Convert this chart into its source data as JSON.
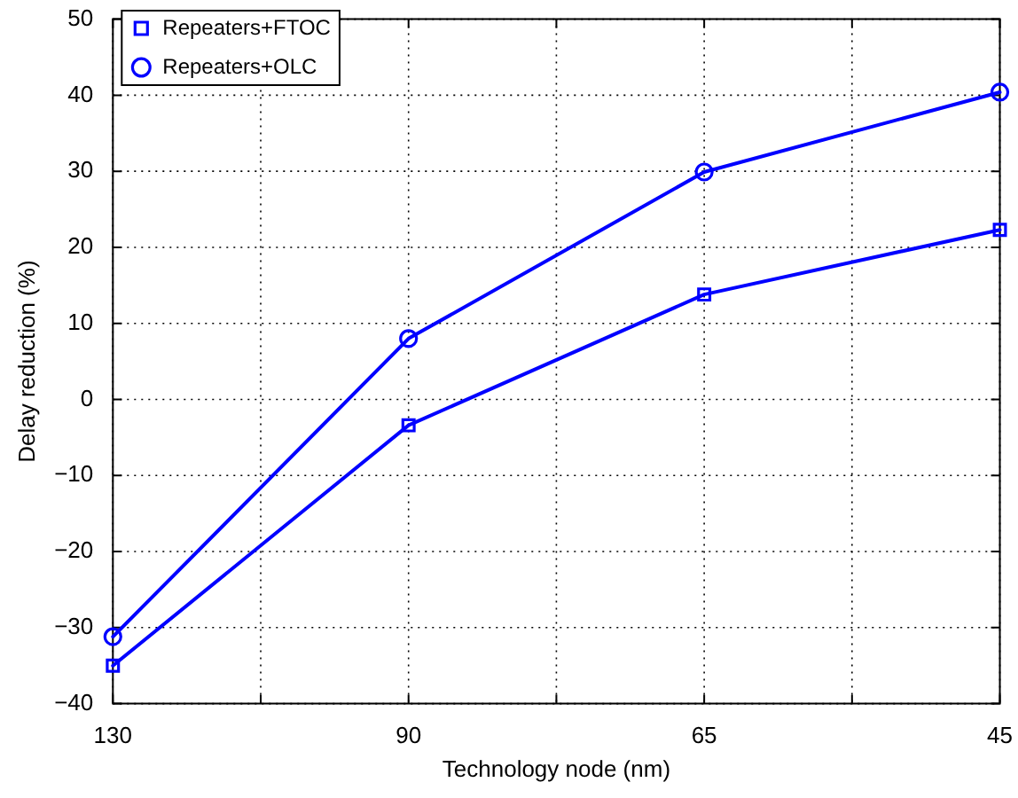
{
  "chart_data": {
    "type": "line",
    "xlabel": "Technology node (nm)",
    "ylabel": "Delay reduction (%)",
    "categories": [
      "130",
      "90",
      "65",
      "45"
    ],
    "ylim": [
      -40,
      50
    ],
    "yticks": [
      -40,
      -30,
      -20,
      -10,
      0,
      10,
      20,
      30,
      40,
      50
    ],
    "series": [
      {
        "name": "Repeaters+FTOC",
        "color": "#0000ff",
        "marker": "square",
        "values": [
          -35,
          -3.4,
          13.8,
          22.3
        ]
      },
      {
        "name": "Repeaters+OLC",
        "color": "#0000ff",
        "marker": "circle",
        "values": [
          -31.2,
          8,
          29.9,
          40.4
        ]
      }
    ],
    "grid": true,
    "legend": "top left",
    "line_style": "solid"
  }
}
